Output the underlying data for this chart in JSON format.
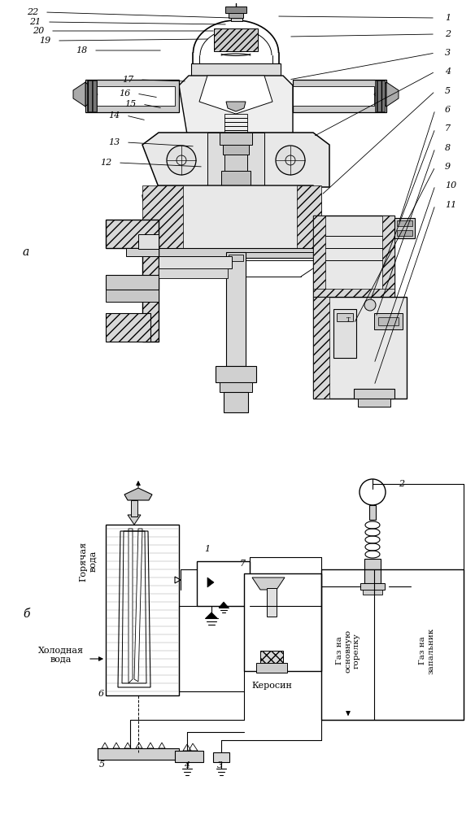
{
  "bg_color": "#ffffff",
  "fig_width": 5.84,
  "fig_height": 10.02,
  "label_a": "a",
  "label_b": "б",
  "bot_text_goryachaya": "Горячая\nвода",
  "bot_text_kholodnaya": "Холодная\nвода",
  "bot_text_kerosin": "Керосин",
  "bot_text_gazosn": "Газ на\nосновную\nгорелку",
  "bot_text_gazzap": "Газ на\nзапальник"
}
